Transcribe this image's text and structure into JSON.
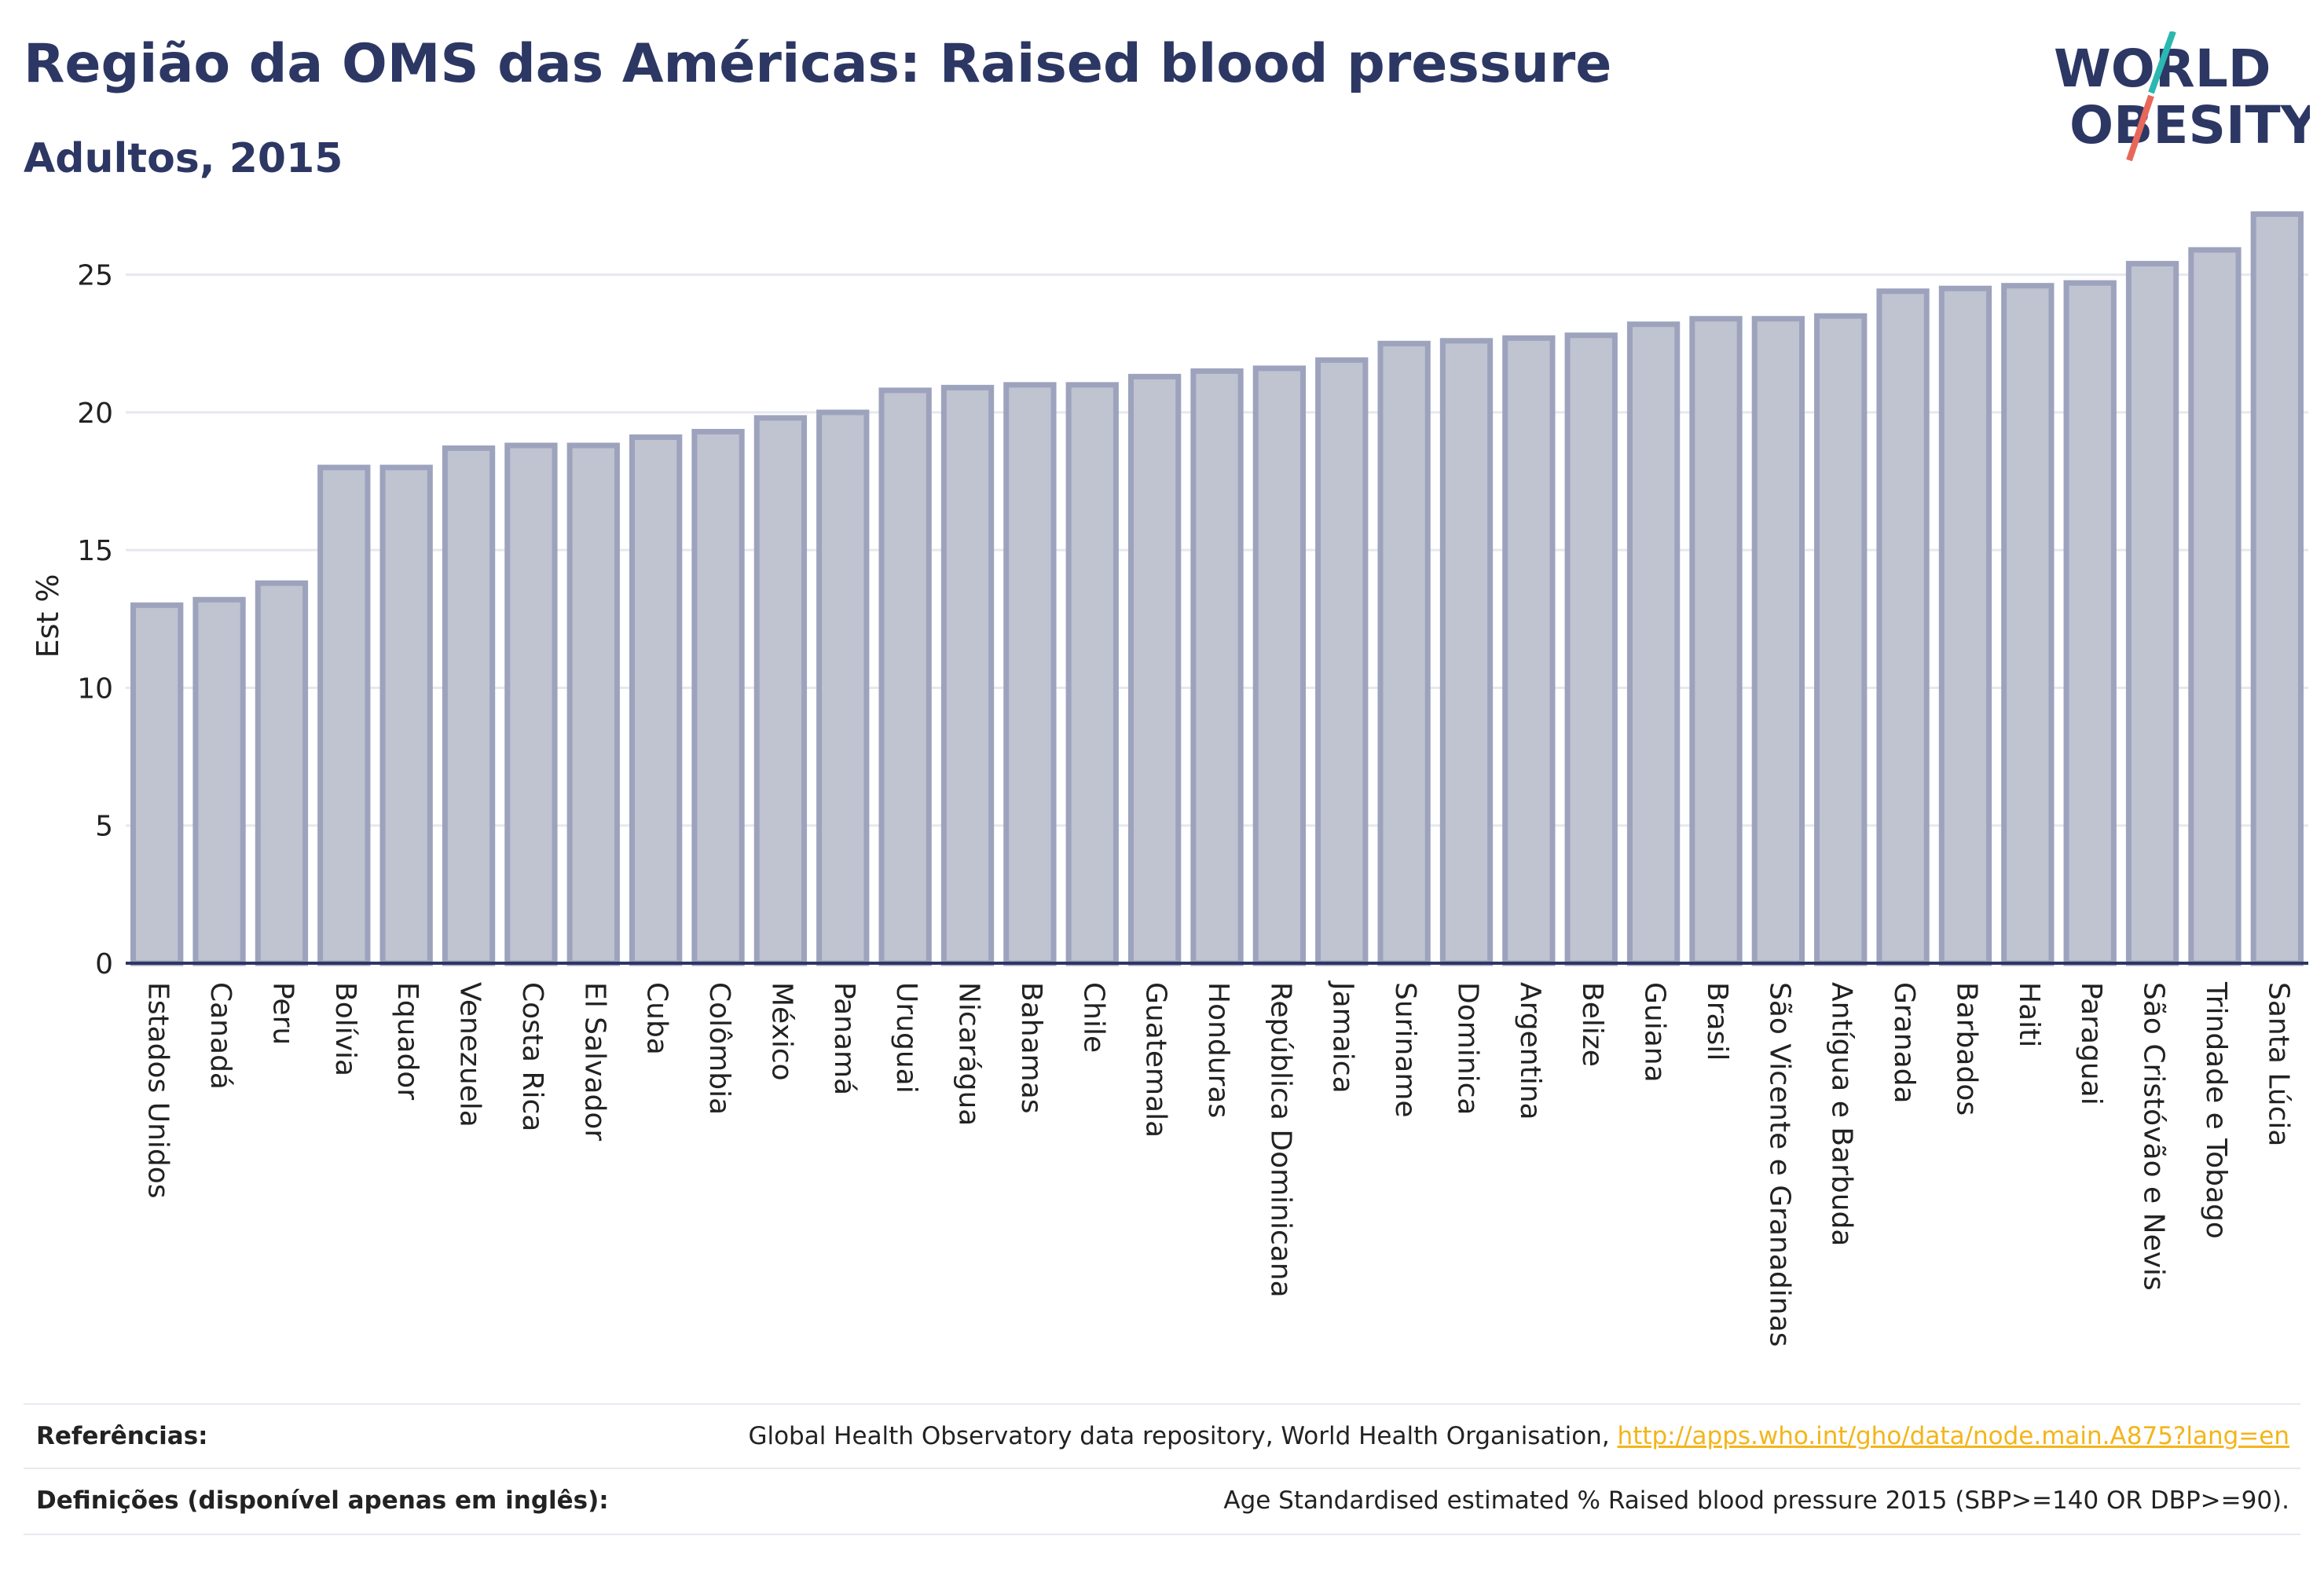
{
  "header": {
    "title": "Região da OMS das Américas: Raised blood pressure",
    "subtitle": "Adultos, 2015"
  },
  "logo": {
    "line1": "WORLD",
    "line2": "OBESITY",
    "colors": {
      "text": "#2c3764",
      "slash_top": "#2ab8b0",
      "slash_bottom": "#e8675a"
    }
  },
  "chart_data": {
    "type": "bar",
    "ylabel": "Est %",
    "ylim": [
      0,
      27.5
    ],
    "yticks": [
      0,
      5,
      10,
      15,
      20,
      25
    ],
    "grid": true,
    "colors": {
      "bar_fill": "#c0c3d0",
      "bar_stroke": "#9da3bd",
      "grid": "#e6e8ef",
      "axis": "#2c3764"
    },
    "categories": [
      "Estados Unidos",
      "Canadá",
      "Peru",
      "Bolívia",
      "Equador",
      "Venezuela",
      "Costa Rica",
      "El Salvador",
      "Cuba",
      "Colômbia",
      "México",
      "Panamá",
      "Uruguai",
      "Nicarágua",
      "Bahamas",
      "Chile",
      "Guatemala",
      "Honduras",
      "República Dominicana",
      "Jamaica",
      "Suriname",
      "Dominica",
      "Argentina",
      "Belize",
      "Guiana",
      "Brasil",
      "São Vicente e Granadinas",
      "Antígua e Barbuda",
      "Granada",
      "Barbados",
      "Haiti",
      "Paraguai",
      "São Cristóvão e Nevis",
      "Trindade e Tobago",
      "Santa Lúcia"
    ],
    "values": [
      13.0,
      13.2,
      13.8,
      18.0,
      18.0,
      18.7,
      18.8,
      18.8,
      19.1,
      19.3,
      19.8,
      20.0,
      20.8,
      20.9,
      21.0,
      21.0,
      21.3,
      21.5,
      21.6,
      21.9,
      22.5,
      22.6,
      22.7,
      22.8,
      23.2,
      23.4,
      23.4,
      23.5,
      24.4,
      24.5,
      24.6,
      24.7,
      25.4,
      25.9,
      27.2
    ]
  },
  "footer": {
    "references_label": "Referências:",
    "references_text": "Global Health Observatory data repository, World Health Organisation, ",
    "references_link": "http://apps.who.int/gho/data/node.main.A875?lang=en",
    "definitions_label": "Definições (disponível apenas em inglês):",
    "definitions_text": "Age Standardised estimated % Raised blood pressure 2015 (SBP>=140 OR DBP>=90)."
  }
}
